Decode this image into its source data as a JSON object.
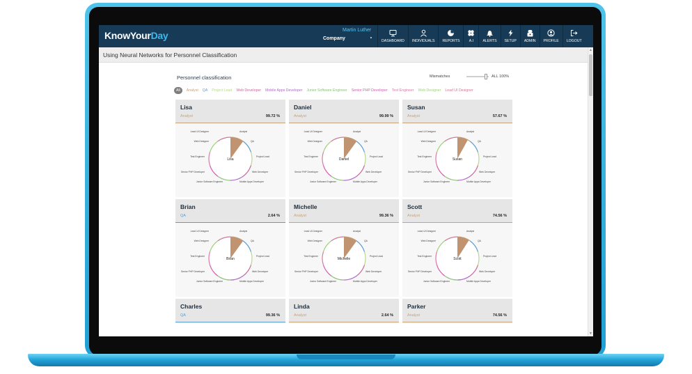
{
  "app": {
    "logo_part1": "KnowYour",
    "logo_part2": "Day",
    "user_name": "Martin Luther",
    "company_label": "Company",
    "page_title": "Using Neural Networks for Personnel Classification"
  },
  "nav": [
    {
      "label": "DASHBOARD",
      "icon": "monitor-icon"
    },
    {
      "label": "INDIVIDUALS",
      "icon": "user-icon"
    },
    {
      "label": "REPORTS",
      "icon": "pie-chart-icon"
    },
    {
      "label": "A.I",
      "icon": "network-icon"
    },
    {
      "label": "ALERTS",
      "icon": "bell-icon"
    },
    {
      "label": "SETUP",
      "icon": "lightning-icon"
    },
    {
      "label": "ADMIN",
      "icon": "admin-icon"
    },
    {
      "label": "PROFILE",
      "icon": "profile-icon"
    },
    {
      "label": "LOGOUT",
      "icon": "logout-icon"
    }
  ],
  "section": {
    "title": "Personnel classification",
    "mismatch_label": "Mismatches",
    "mismatch_value": "ALL 100%"
  },
  "filters": [
    {
      "label": "All",
      "color": "#ffffff"
    },
    {
      "label": "Analyst",
      "color": "#c9a27a"
    },
    {
      "label": "QA",
      "color": "#5b9bd5"
    },
    {
      "label": "Project Lead",
      "color": "#b8d98a"
    },
    {
      "label": "Web Developer",
      "color": "#c7689a"
    },
    {
      "label": "Mobile Apps Developer",
      "color": "#b06ac8"
    },
    {
      "label": "Junior Software Engineer",
      "color": "#8fc07a"
    },
    {
      "label": "Senior PHP Developer",
      "color": "#d55ab0"
    },
    {
      "label": "Test Engineer",
      "color": "#d97aa8"
    },
    {
      "label": "Web Designer",
      "color": "#9fd07a"
    },
    {
      "label": "Lead UI Designer",
      "color": "#cf7a9a"
    }
  ],
  "chart_labels": [
    "Lead UI Designer",
    "Analyst",
    "QA",
    "Web Designer",
    "Project Lead",
    "Test Engineer",
    "Web Developer",
    "Senior PHP Developer",
    "Junior Software Engineer",
    "Mobile Apps Developer"
  ],
  "people": [
    {
      "name": "Lisa",
      "role": "Analyst",
      "role_color": "#c9a27a",
      "pct": "99.72 %",
      "slice": 0.1
    },
    {
      "name": "Daniel",
      "role": "Analyst",
      "role_color": "#c9a27a",
      "pct": "99.99 %",
      "slice": 0.1
    },
    {
      "name": "Susan",
      "role": "Analyst",
      "role_color": "#c9a27a",
      "pct": "57.67 %",
      "slice": 0.08
    },
    {
      "name": "Brian",
      "role": "QA",
      "role_color": "#5b9bd5",
      "pct": "2.64 %",
      "slice": 0.1
    },
    {
      "name": "Michelle",
      "role": "Analyst",
      "role_color": "#c9a27a",
      "pct": "99.36 %",
      "slice": 0.1
    },
    {
      "name": "Scott",
      "role": "Analyst",
      "role_color": "#c9a27a",
      "pct": "74.56 %",
      "slice": 0.09
    },
    {
      "name": "Charles",
      "role": "QA",
      "role_color": "#5b9bd5",
      "pct": "99.36 %"
    },
    {
      "name": "Linda",
      "role": "Analyst",
      "role_color": "#c9a27a",
      "pct": "2.64 %"
    },
    {
      "name": "Parker",
      "role": "Analyst",
      "role_color": "#c9a27a",
      "pct": "74.56 %"
    }
  ]
}
